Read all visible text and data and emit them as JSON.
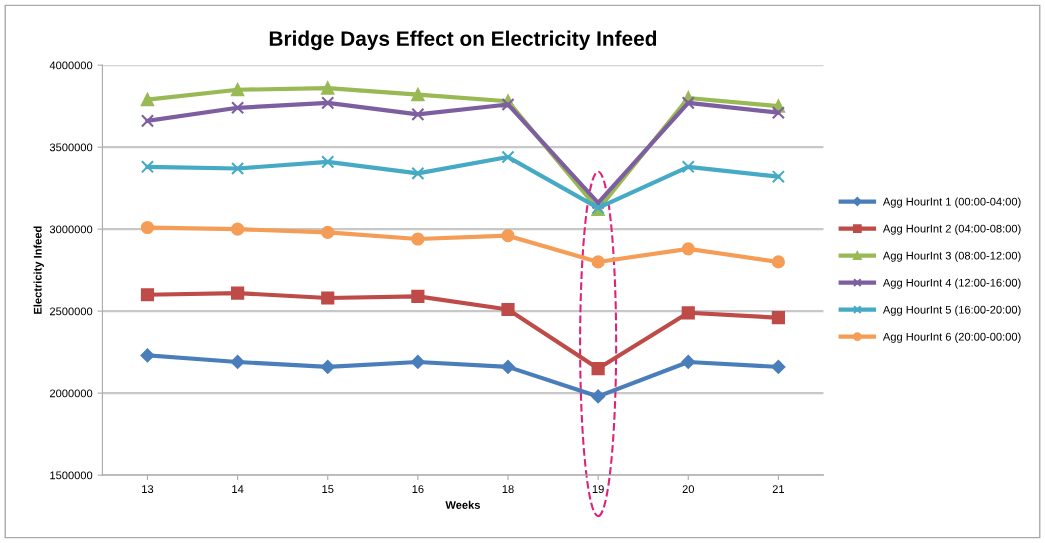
{
  "chart_data": {
    "type": "line",
    "title": "Bridge Days Effect on Electricity Infeed",
    "xlabel": "Weeks",
    "ylabel": "Electricity Infeed",
    "categories": [
      "13",
      "14",
      "15",
      "16",
      "18",
      "19",
      "20",
      "21"
    ],
    "series": [
      {
        "name": "Agg HourInt 1 (00:00-04:00)",
        "color": "#4a7ebb",
        "marker": "diamond",
        "values": [
          2230000,
          2190000,
          2160000,
          2190000,
          2160000,
          1980000,
          2190000,
          2160000
        ]
      },
      {
        "name": "Agg HourInt 2 (04:00-08:00)",
        "color": "#be4b48",
        "marker": "square",
        "values": [
          2600000,
          2610000,
          2580000,
          2590000,
          2510000,
          2150000,
          2490000,
          2460000
        ]
      },
      {
        "name": "Agg HourInt 3 (08:00-12:00)",
        "color": "#98b954",
        "marker": "triangle",
        "values": [
          3790000,
          3850000,
          3860000,
          3820000,
          3780000,
          3120000,
          3800000,
          3750000
        ]
      },
      {
        "name": "Agg HourInt 4 (12:00-16:00)",
        "color": "#7d5fa0",
        "marker": "cross",
        "values": [
          3660000,
          3740000,
          3770000,
          3700000,
          3760000,
          3160000,
          3770000,
          3710000
        ]
      },
      {
        "name": "Agg HourInt 5 (16:00-20:00)",
        "color": "#46aac5",
        "marker": "cross",
        "values": [
          3380000,
          3370000,
          3410000,
          3340000,
          3440000,
          3130000,
          3380000,
          3320000
        ]
      },
      {
        "name": "Agg HourInt 6 (20:00-00:00)",
        "color": "#f59d56",
        "marker": "circle",
        "values": [
          3010000,
          3000000,
          2980000,
          2940000,
          2960000,
          2800000,
          2880000,
          2800000
        ]
      }
    ],
    "ylim": [
      1500000,
      4000000
    ],
    "yticks": [
      1500000,
      2000000,
      2500000,
      3000000,
      3500000,
      4000000
    ],
    "grid": "y",
    "legend": "right",
    "line_style": "solid"
  }
}
